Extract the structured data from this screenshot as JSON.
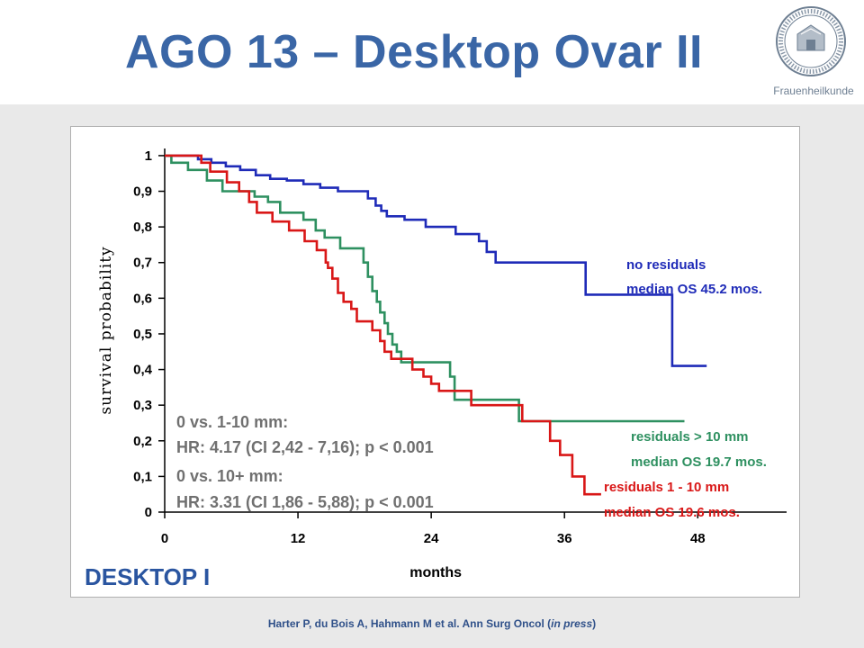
{
  "slide": {
    "title": "AGO 13 – Desktop Ovar II",
    "logo_caption": "Frauenheilkunde",
    "logo_icon": "university-seal-icon"
  },
  "citation": {
    "text": "Harter P, du Bois A, Hahmann M et al. Ann Surg Oncol (",
    "italic": "in press",
    "close": ")"
  },
  "chart_data": {
    "type": "line",
    "subtype": "kaplan-meier-step",
    "xlabel": "months",
    "ylabel": "survival probability",
    "xlim": [
      0,
      56
    ],
    "ylim": [
      0,
      1.02
    ],
    "x_ticks": [
      0,
      12,
      24,
      36,
      48
    ],
    "y_ticks": [
      {
        "v": 0,
        "label": "0"
      },
      {
        "v": 0.1,
        "label": "0,1"
      },
      {
        "v": 0.2,
        "label": "0,2"
      },
      {
        "v": 0.3,
        "label": "0,3"
      },
      {
        "v": 0.4,
        "label": "0,4"
      },
      {
        "v": 0.5,
        "label": "0,5"
      },
      {
        "v": 0.6,
        "label": "0,6"
      },
      {
        "v": 0.7,
        "label": "0,7"
      },
      {
        "v": 0.8,
        "label": "0,8"
      },
      {
        "v": 0.9,
        "label": "0,9"
      },
      {
        "v": 1,
        "label": "1"
      }
    ],
    "grid": false,
    "series": [
      {
        "key": "no-residuals",
        "color": "#1f2bb8",
        "points": [
          [
            0,
            1.0
          ],
          [
            2.2,
            1.0
          ],
          [
            3,
            0.99
          ],
          [
            4.2,
            0.98
          ],
          [
            5.5,
            0.97
          ],
          [
            6.8,
            0.96
          ],
          [
            8.2,
            0.945
          ],
          [
            9.5,
            0.935
          ],
          [
            11,
            0.93
          ],
          [
            12.5,
            0.92
          ],
          [
            14,
            0.91
          ],
          [
            15.6,
            0.9
          ],
          [
            18.3,
            0.88
          ],
          [
            19,
            0.86
          ],
          [
            19.5,
            0.845
          ],
          [
            20,
            0.83
          ],
          [
            21.6,
            0.82
          ],
          [
            23.5,
            0.8
          ],
          [
            26.2,
            0.78
          ],
          [
            28.3,
            0.76
          ],
          [
            29,
            0.73
          ],
          [
            29.8,
            0.7
          ],
          [
            37.9,
            0.61
          ],
          [
            45.3,
            0.61
          ],
          [
            45.7,
            0.41
          ],
          [
            48.8,
            0.41
          ]
        ],
        "label_line1": "no residuals",
        "label_line2": "median OS 45.2 mos."
      },
      {
        "key": "residuals-gt-10",
        "color": "#2e9060",
        "points": [
          [
            0,
            1.0
          ],
          [
            0.6,
            0.98
          ],
          [
            2.1,
            0.96
          ],
          [
            3.8,
            0.93
          ],
          [
            5.2,
            0.9
          ],
          [
            8.1,
            0.885
          ],
          [
            9.3,
            0.87
          ],
          [
            10.4,
            0.84
          ],
          [
            12.5,
            0.82
          ],
          [
            13.6,
            0.79
          ],
          [
            14.4,
            0.77
          ],
          [
            15.8,
            0.74
          ],
          [
            17.9,
            0.7
          ],
          [
            18.3,
            0.66
          ],
          [
            18.7,
            0.62
          ],
          [
            19.1,
            0.59
          ],
          [
            19.4,
            0.56
          ],
          [
            19.8,
            0.53
          ],
          [
            20.1,
            0.5
          ],
          [
            20.5,
            0.47
          ],
          [
            20.9,
            0.45
          ],
          [
            21.3,
            0.42
          ],
          [
            25.7,
            0.38
          ],
          [
            26.1,
            0.315
          ],
          [
            31.9,
            0.255
          ],
          [
            46.8,
            0.255
          ]
        ],
        "label_line1": "residuals > 10 mm",
        "label_line2": "median OS 19.7 mos."
      },
      {
        "key": "residuals-1-10",
        "color": "#d91717",
        "points": [
          [
            0,
            1.0
          ],
          [
            3.3,
            0.98
          ],
          [
            4.1,
            0.955
          ],
          [
            5.6,
            0.925
          ],
          [
            6.7,
            0.9
          ],
          [
            7.6,
            0.87
          ],
          [
            8.3,
            0.84
          ],
          [
            9.7,
            0.815
          ],
          [
            11.2,
            0.79
          ],
          [
            12.6,
            0.76
          ],
          [
            13.7,
            0.735
          ],
          [
            14.5,
            0.7
          ],
          [
            14.7,
            0.685
          ],
          [
            15.1,
            0.655
          ],
          [
            15.6,
            0.615
          ],
          [
            16.1,
            0.59
          ],
          [
            16.8,
            0.57
          ],
          [
            17.3,
            0.535
          ],
          [
            18.7,
            0.51
          ],
          [
            19.4,
            0.48
          ],
          [
            19.8,
            0.45
          ],
          [
            20.4,
            0.43
          ],
          [
            22.3,
            0.4
          ],
          [
            23.3,
            0.38
          ],
          [
            24,
            0.36
          ],
          [
            24.7,
            0.34
          ],
          [
            27.6,
            0.3
          ],
          [
            32.2,
            0.255
          ],
          [
            34.7,
            0.2
          ],
          [
            35.6,
            0.16
          ],
          [
            36.7,
            0.1
          ],
          [
            37.8,
            0.05
          ],
          [
            39.3,
            0.05
          ]
        ],
        "label_line1": "residuals 1 - 10 mm",
        "label_line2": "median OS 19.6 mos."
      }
    ],
    "annotations": {
      "cmp1_title": "0 vs. 1-10 mm:",
      "cmp1_stats": "HR: 4.17 (CI 2,42 - 7,16); p < 0.001",
      "cmp2_title": "0 vs. 10+ mm:",
      "cmp2_stats": "HR: 3.31 (CI 1,86 - 5,88); p < 0.001"
    },
    "panel_label": "DESKTOP I"
  }
}
